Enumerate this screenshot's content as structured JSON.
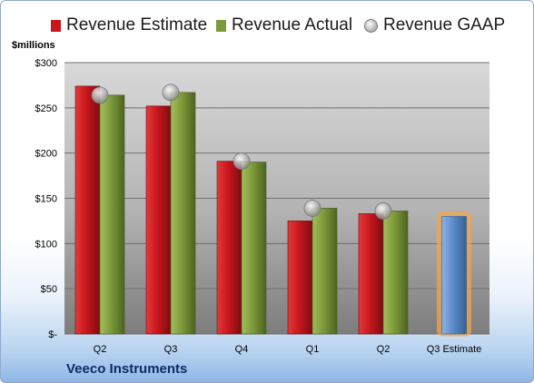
{
  "legend": {
    "estimate": "Revenue Estimate",
    "actual": "Revenue Actual",
    "gaap": "Revenue GAAP"
  },
  "unit_label": "$millions",
  "company": "Veeco Instruments",
  "colors": {
    "estimate": "#c8161d",
    "actual": "#7d9a3a",
    "gaap": "#a6a6a6",
    "future_estimate": "#5b8ccc",
    "highlight": "#f2a64a"
  },
  "chart_data": {
    "type": "bar",
    "categories": [
      "Q2",
      "Q3",
      "Q4",
      "Q1",
      "Q2",
      "Q3 Estimate"
    ],
    "series": [
      {
        "name": "Revenue Estimate",
        "values": [
          274,
          252,
          191,
          125,
          133,
          130
        ]
      },
      {
        "name": "Revenue Actual",
        "values": [
          264,
          267,
          190,
          139,
          136,
          null
        ]
      },
      {
        "name": "Revenue GAAP",
        "values": [
          264,
          267,
          191,
          139,
          136,
          null
        ]
      }
    ],
    "ylim": [
      0,
      300
    ],
    "yticks": [
      0,
      50,
      100,
      150,
      200,
      250,
      300
    ],
    "ytick_labels": [
      "$-",
      "$50",
      "$100",
      "$150",
      "$200",
      "$250",
      "$300"
    ],
    "ylabel": "$millions",
    "xlabel": "",
    "grid": true,
    "legend_position": "top"
  }
}
